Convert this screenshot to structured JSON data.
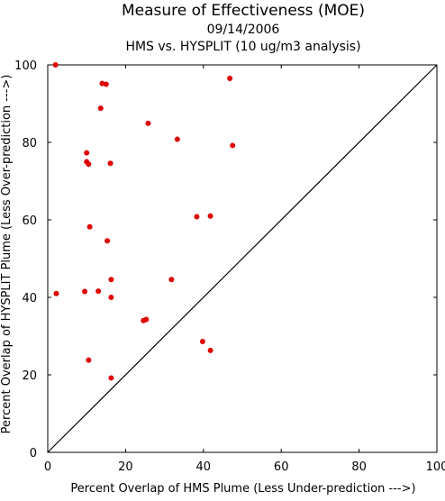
{
  "chart_data": {
    "type": "scatter",
    "title": "Measure of Effectiveness (MOE)",
    "subtitle_date": "09/14/2006",
    "subtitle_analysis": "HMS vs. HYSPLIT  (10 ug/m3 analysis)",
    "xlabel": "Percent Overlap of HMS Plume (Less Under-prediction --->)",
    "ylabel": "Percent Overlap of HYSPLIT Plume (Less Over-prediction --->)",
    "xlim": [
      0,
      100
    ],
    "ylim": [
      0,
      100
    ],
    "xticks": [
      "0",
      "20",
      "40",
      "60",
      "80",
      "100"
    ],
    "yticks": [
      "0",
      "20",
      "40",
      "60",
      "80",
      "100"
    ],
    "grid": false,
    "reference_line": "diagonal y = x",
    "point_color": "#e00000",
    "line_color": "#000000",
    "points": [
      {
        "x": 2.0,
        "y": 100.0
      },
      {
        "x": 14.0,
        "y": 95.2
      },
      {
        "x": 15.0,
        "y": 95.0
      },
      {
        "x": 46.8,
        "y": 96.5
      },
      {
        "x": 13.6,
        "y": 88.8
      },
      {
        "x": 25.8,
        "y": 84.9
      },
      {
        "x": 33.3,
        "y": 80.8
      },
      {
        "x": 47.5,
        "y": 79.2
      },
      {
        "x": 10.0,
        "y": 77.3
      },
      {
        "x": 10.0,
        "y": 75.0
      },
      {
        "x": 10.5,
        "y": 74.4
      },
      {
        "x": 16.1,
        "y": 74.6
      },
      {
        "x": 38.3,
        "y": 60.8
      },
      {
        "x": 41.8,
        "y": 61.0
      },
      {
        "x": 10.8,
        "y": 58.2
      },
      {
        "x": 15.3,
        "y": 54.6
      },
      {
        "x": 16.3,
        "y": 44.6
      },
      {
        "x": 31.8,
        "y": 44.6
      },
      {
        "x": 2.2,
        "y": 41.0
      },
      {
        "x": 9.5,
        "y": 41.5
      },
      {
        "x": 13.0,
        "y": 41.6
      },
      {
        "x": 16.3,
        "y": 40.0
      },
      {
        "x": 24.6,
        "y": 34.0
      },
      {
        "x": 25.3,
        "y": 34.3
      },
      {
        "x": 39.8,
        "y": 28.6
      },
      {
        "x": 41.8,
        "y": 26.3
      },
      {
        "x": 10.5,
        "y": 23.8
      },
      {
        "x": 16.3,
        "y": 19.2
      }
    ]
  }
}
